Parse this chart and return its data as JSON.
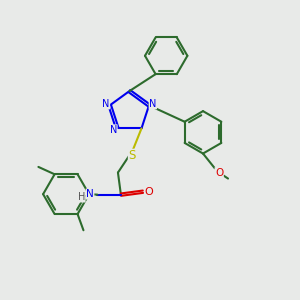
{
  "background_color": "#e8eae8",
  "bond_color": "#2d6b2d",
  "n_color": "#0000ee",
  "o_color": "#dd0000",
  "s_color": "#bbbb00",
  "h_color": "#555555",
  "line_width": 1.5,
  "fig_size": [
    3.0,
    3.0
  ],
  "dpi": 100,
  "xlim": [
    0,
    10
  ],
  "ylim": [
    0,
    10
  ]
}
